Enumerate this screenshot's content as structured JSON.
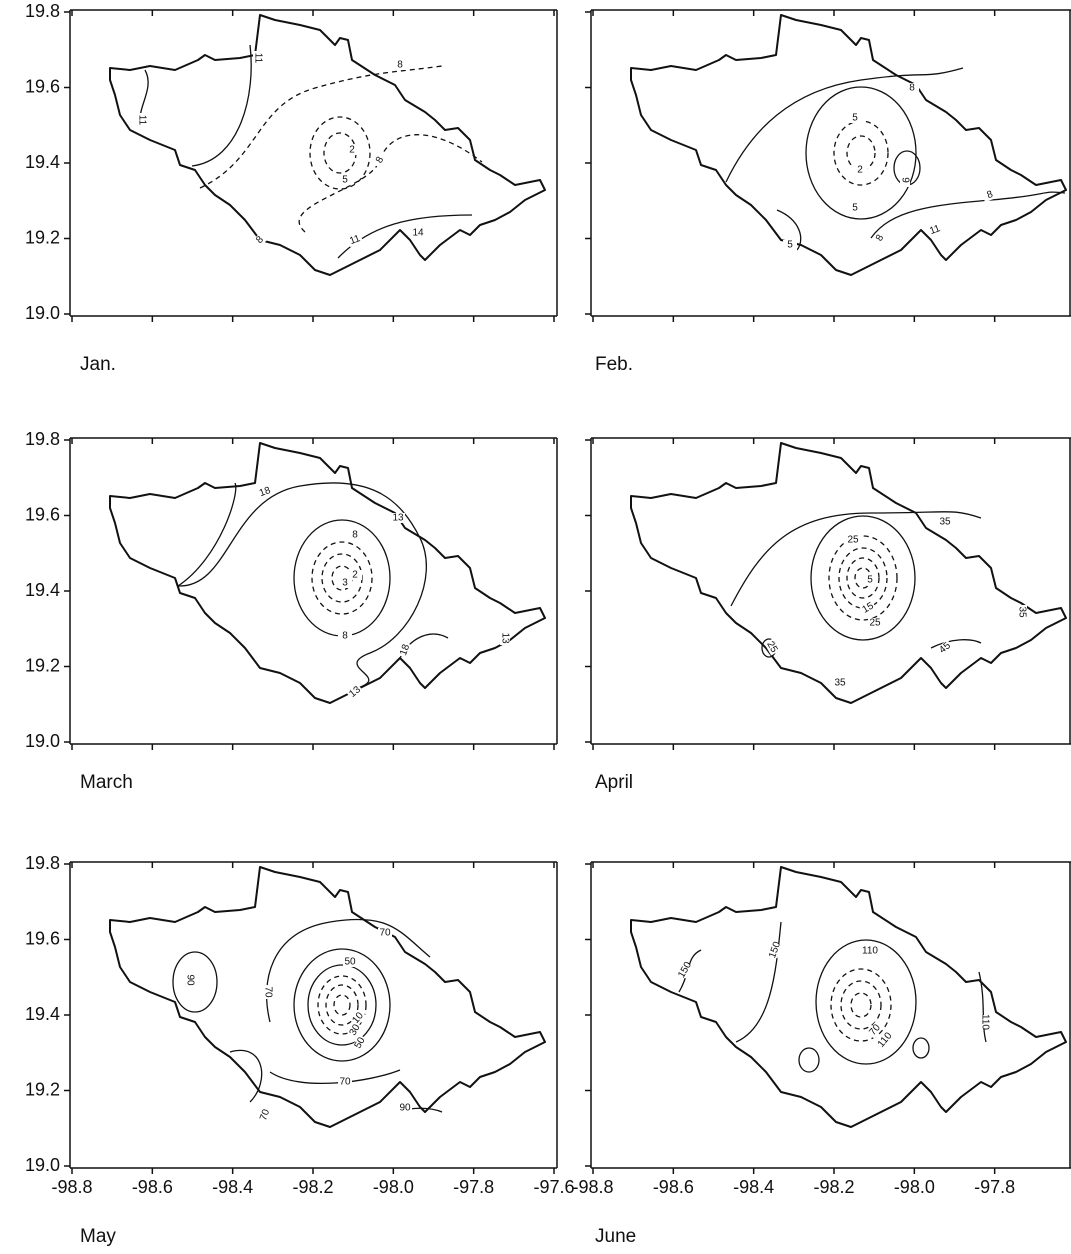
{
  "axes": {
    "xlim": [
      -98.8,
      -97.6
    ],
    "ylim": [
      19.0,
      19.8
    ],
    "xticks": [
      {
        "value": -98.8,
        "label": "-98.8"
      },
      {
        "value": -98.6,
        "label": "-98.6"
      },
      {
        "value": -98.4,
        "label": "-98.4"
      },
      {
        "value": -98.2,
        "label": "-98.2"
      },
      {
        "value": -98,
        "label": "-98.0"
      },
      {
        "value": -97.8,
        "label": "-97.8"
      },
      {
        "value": -97.6,
        "label": "-97.6"
      }
    ],
    "yticks": [
      {
        "value": 19,
        "label": "19.0"
      },
      19.2,
      19.4,
      19.6,
      19.8
    ]
  },
  "panels": [
    {
      "label": "Jan.",
      "contour_labels": [
        "11",
        "11",
        "8",
        "2",
        "5",
        "8",
        "8",
        "11",
        "14"
      ]
    },
    {
      "label": "Feb.",
      "contour_labels": [
        "8",
        "5",
        "2",
        "9",
        "5",
        "8",
        "5",
        "8",
        "11"
      ]
    },
    {
      "label": "March",
      "contour_labels": [
        "18",
        "13",
        "8",
        "2",
        "3",
        "8",
        "18",
        "13",
        "13"
      ]
    },
    {
      "label": "April",
      "contour_labels": [
        "35",
        "25",
        "5",
        "15",
        "25",
        "35",
        "45",
        "35",
        "25"
      ]
    },
    {
      "label": "May",
      "contour_labels": [
        "70",
        "50",
        "90",
        "70",
        "10",
        "30",
        "50",
        "70",
        "70",
        "90"
      ]
    },
    {
      "label": "June",
      "contour_labels": [
        "110",
        "150",
        "150",
        "70",
        "110",
        "110"
      ]
    }
  ]
}
